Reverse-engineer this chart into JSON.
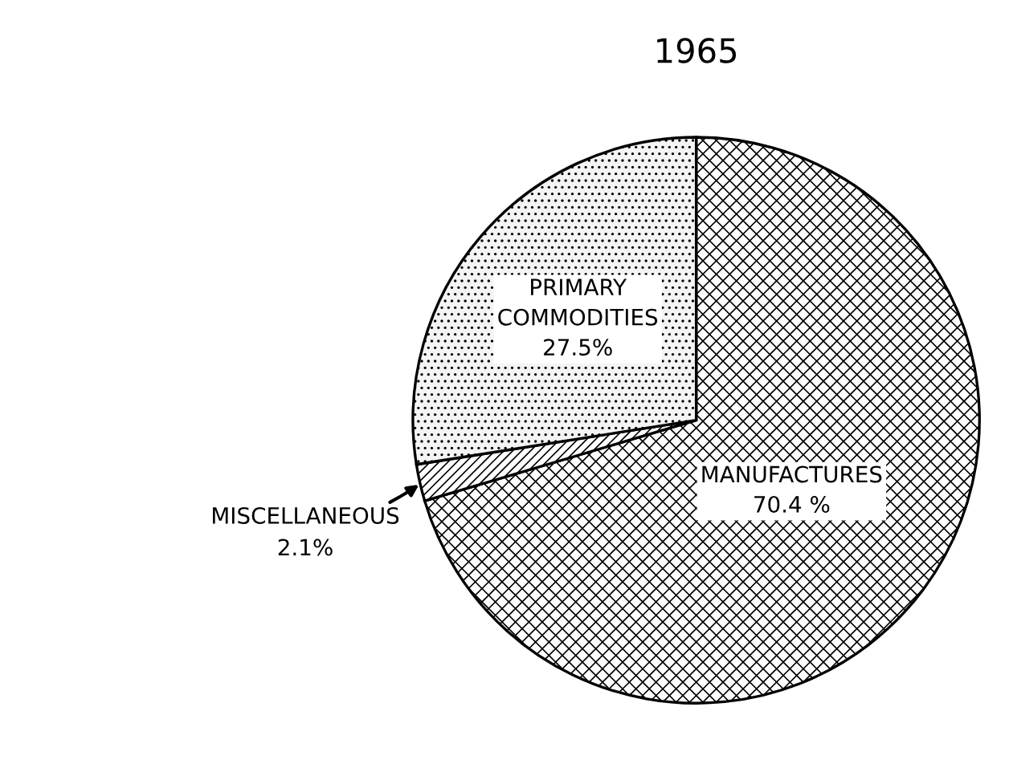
{
  "chart_data": {
    "type": "pie",
    "title": "1965",
    "categories": [
      "MANUFACTURES",
      "MISCELLANEOUS",
      "PRIMARY COMMODITIES"
    ],
    "values": [
      70.4,
      2.1,
      27.5
    ],
    "value_labels": [
      "70.4 %",
      "2.1%",
      "27.5%"
    ],
    "colors": [
      "#ffffff",
      "#ffffff",
      "#f4f4f4"
    ]
  }
}
